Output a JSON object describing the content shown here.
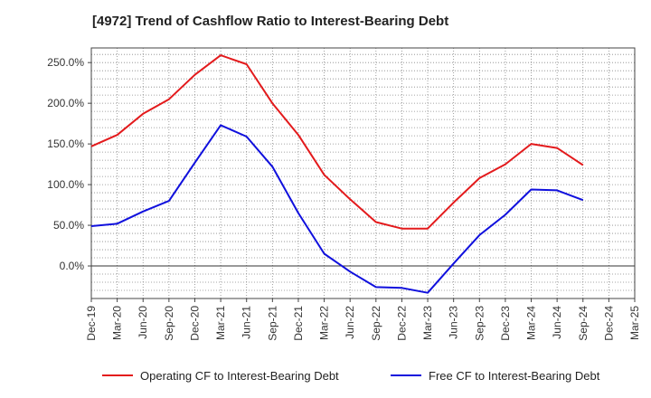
{
  "chart_data": {
    "type": "line",
    "title": "[4972]  Trend of Cashflow Ratio to Interest-Bearing Debt",
    "x": [
      "Dec-19",
      "Mar-20",
      "Jun-20",
      "Sep-20",
      "Dec-20",
      "Mar-21",
      "Jun-21",
      "Sep-21",
      "Dec-21",
      "Mar-22",
      "Jun-22",
      "Sep-22",
      "Dec-22",
      "Mar-23",
      "Jun-23",
      "Sep-23",
      "Dec-23",
      "Mar-24",
      "Jun-24",
      "Sep-24",
      "Dec-24",
      "Mar-25"
    ],
    "series": [
      {
        "name": "Operating CF to Interest-Bearing Debt",
        "color": "#e31a1c",
        "values": [
          147,
          161,
          187,
          205,
          235,
          259,
          248,
          200,
          161,
          112,
          82,
          54,
          46,
          46,
          78,
          108,
          125,
          150,
          145,
          124,
          null,
          null
        ]
      },
      {
        "name": "Free CF to Interest-Bearing Debt",
        "color": "#1010dd",
        "values": [
          49,
          52,
          67,
          80,
          127,
          173,
          159,
          122,
          65,
          15,
          -7,
          -26,
          -27,
          -33,
          3,
          38,
          63,
          94,
          93,
          81,
          null,
          null
        ]
      }
    ],
    "yticks": [
      0,
      50,
      100,
      150,
      200,
      250
    ],
    "ytick_labels": [
      "0.0%",
      "50.0%",
      "100.0%",
      "150.0%",
      "200.0%",
      "250.0%"
    ],
    "ylim": [
      -40,
      268
    ],
    "grid": true,
    "legend_position": "bottom"
  }
}
